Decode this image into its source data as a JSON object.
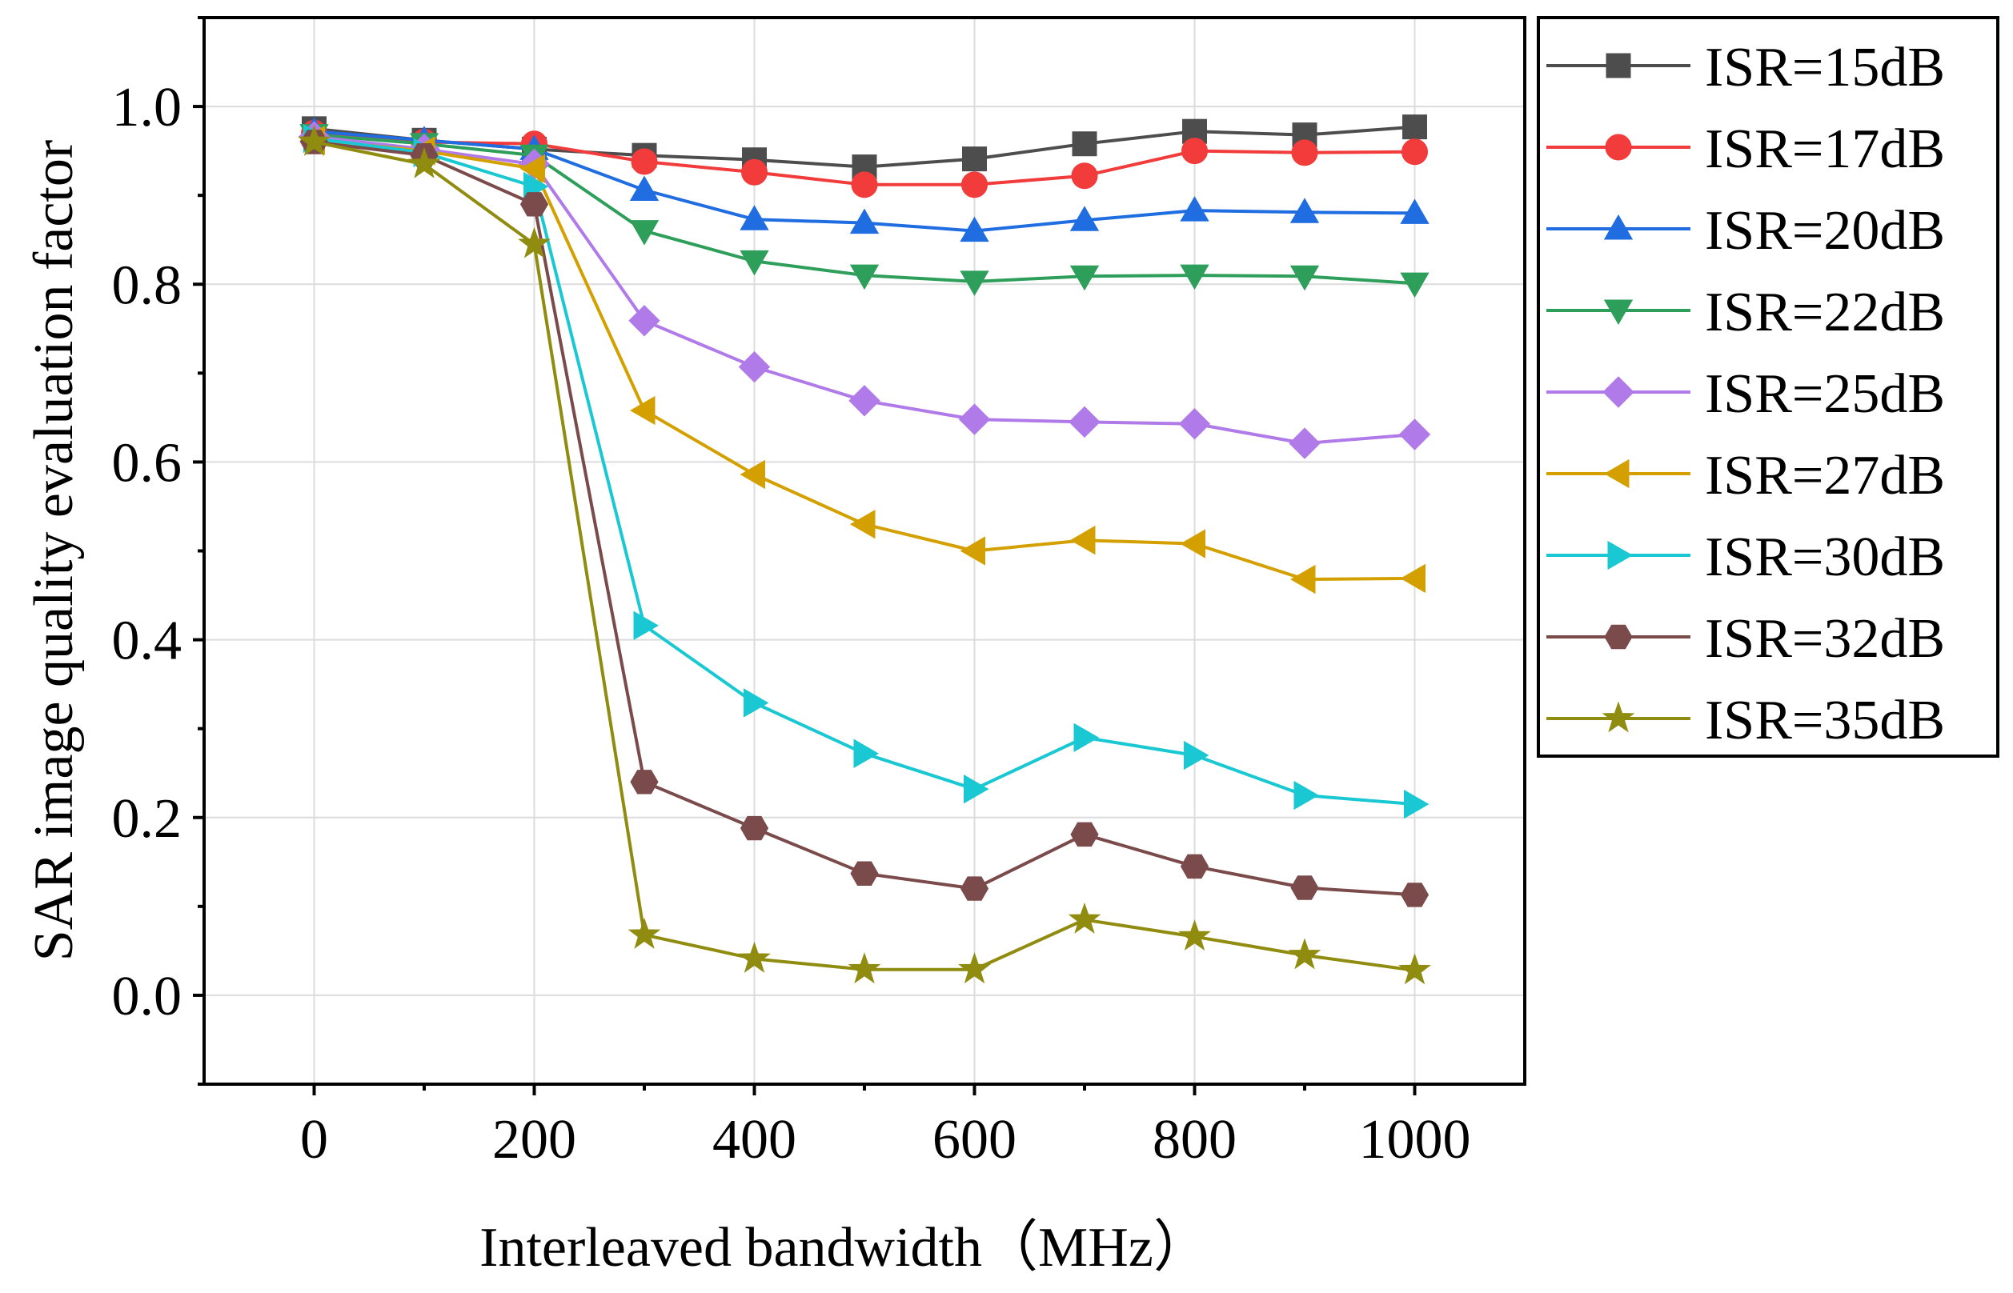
{
  "chart_data": {
    "type": "line",
    "title": "",
    "xlabel": "Interleaved bandwidth（MHz）",
    "ylabel": "SAR image quality evaluation factor",
    "x": [
      0,
      100,
      200,
      300,
      400,
      500,
      600,
      700,
      800,
      900,
      1000
    ],
    "xlim": [
      -100,
      1100
    ],
    "ylim": [
      -0.1,
      1.1
    ],
    "xticks": [
      0,
      200,
      400,
      600,
      800,
      1000
    ],
    "xtick_labels": [
      "0",
      "200",
      "400",
      "600",
      "800",
      "1000"
    ],
    "yticks": [
      0.0,
      0.2,
      0.4,
      0.6,
      0.8,
      1.0
    ],
    "ytick_labels": [
      "0.0",
      "0.2",
      "0.4",
      "0.6",
      "0.8",
      "1.0"
    ],
    "grid": true,
    "legend_position": "outside-top-right",
    "series": [
      {
        "name": "ISR=15dB",
        "color": "#4d4d4d",
        "marker": "square",
        "values": [
          0.975,
          0.962,
          0.952,
          0.945,
          0.94,
          0.932,
          0.941,
          0.958,
          0.972,
          0.968,
          0.977
        ]
      },
      {
        "name": "ISR=17dB",
        "color": "#f23b3b",
        "marker": "circle",
        "values": [
          0.97,
          0.96,
          0.958,
          0.938,
          0.926,
          0.912,
          0.912,
          0.922,
          0.95,
          0.948,
          0.949
        ]
      },
      {
        "name": "ISR=20dB",
        "color": "#1f6de0",
        "marker": "triangle-up",
        "values": [
          0.972,
          0.962,
          0.952,
          0.906,
          0.873,
          0.869,
          0.86,
          0.872,
          0.883,
          0.881,
          0.88
        ]
      },
      {
        "name": "ISR=22dB",
        "color": "#2e9e5b",
        "marker": "triangle-down",
        "values": [
          0.968,
          0.958,
          0.945,
          0.86,
          0.826,
          0.81,
          0.803,
          0.809,
          0.81,
          0.809,
          0.801
        ]
      },
      {
        "name": "ISR=25dB",
        "color": "#b07ae8",
        "marker": "diamond",
        "values": [
          0.966,
          0.952,
          0.935,
          0.759,
          0.707,
          0.669,
          0.648,
          0.645,
          0.643,
          0.621,
          0.631
        ]
      },
      {
        "name": "ISR=27dB",
        "color": "#d4a000",
        "marker": "triangle-left",
        "values": [
          0.962,
          0.95,
          0.93,
          0.658,
          0.586,
          0.53,
          0.5,
          0.512,
          0.508,
          0.468,
          0.469
        ]
      },
      {
        "name": "ISR=30dB",
        "color": "#19c8d2",
        "marker": "triangle-right",
        "values": [
          0.964,
          0.948,
          0.91,
          0.416,
          0.329,
          0.272,
          0.232,
          0.29,
          0.27,
          0.225,
          0.215
        ]
      },
      {
        "name": "ISR=32dB",
        "color": "#7b4a4a",
        "marker": "hexagon",
        "values": [
          0.96,
          0.945,
          0.89,
          0.24,
          0.188,
          0.137,
          0.12,
          0.181,
          0.145,
          0.121,
          0.113
        ]
      },
      {
        "name": "ISR=35dB",
        "color": "#8f8c10",
        "marker": "star",
        "values": [
          0.96,
          0.935,
          0.845,
          0.068,
          0.041,
          0.029,
          0.029,
          0.085,
          0.066,
          0.045,
          0.028
        ]
      }
    ]
  }
}
